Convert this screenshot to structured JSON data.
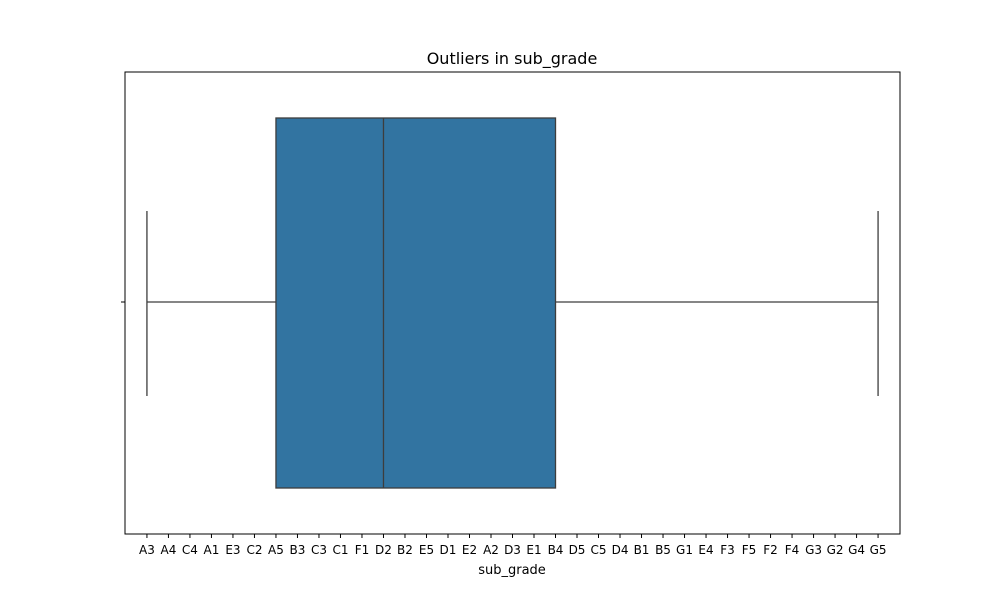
{
  "chart_data": {
    "type": "box",
    "title": "Outliers in sub_grade",
    "xlabel": "sub_grade",
    "ylabel": "",
    "orientation": "horizontal",
    "categories": [
      "A3",
      "A4",
      "C4",
      "A1",
      "E3",
      "C2",
      "A5",
      "B3",
      "C3",
      "C1",
      "F1",
      "D2",
      "B2",
      "E5",
      "D1",
      "E2",
      "A2",
      "D3",
      "E1",
      "B4",
      "D5",
      "C5",
      "D4",
      "B1",
      "B5",
      "G1",
      "E4",
      "F3",
      "F5",
      "F2",
      "F4",
      "G3",
      "G2",
      "G4",
      "G5"
    ],
    "box": {
      "whisker_low": "A3",
      "q1": "A5",
      "median": "D2",
      "q3": "B4",
      "whisker_high": "G5"
    },
    "box_color": "#3274a1",
    "line_color": "#3d3d3d",
    "grid": false,
    "legend": "none"
  }
}
